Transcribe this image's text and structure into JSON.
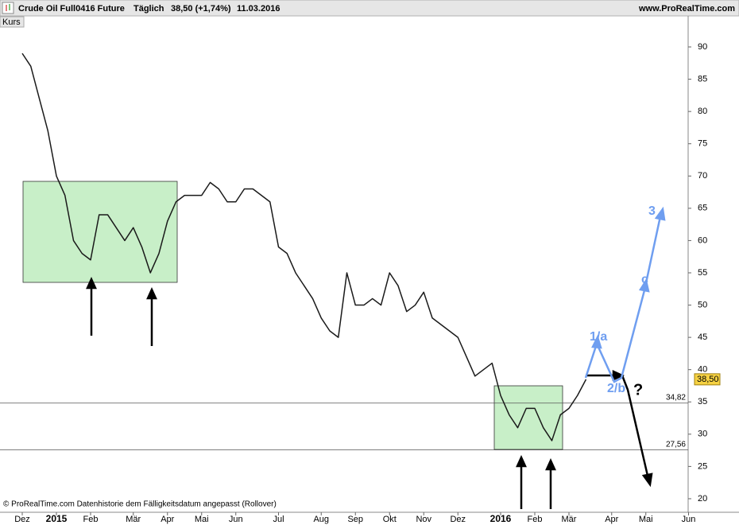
{
  "chart_data": {
    "type": "line",
    "header": {
      "instrument": "Crude Oil Full0416 Future",
      "interval": "Täglich",
      "price": "38,50 (+1,74%)",
      "date": "11.03.2016",
      "site": "www.ProRealTime.com"
    },
    "panel_label": "Kurs",
    "footer": "© ProRealTime.com  Datenhistorie dem Fälligkeitsdatum angepasst (Rollover)",
    "categories": [
      "Dez",
      null,
      null,
      null,
      "2015",
      null,
      null,
      null,
      "Feb",
      null,
      null,
      null,
      null,
      "Mär",
      null,
      null,
      null,
      "Apr",
      null,
      null,
      null,
      "Mai",
      null,
      null,
      null,
      "Jun",
      null,
      null,
      null,
      null,
      "Jul",
      null,
      null,
      null,
      null,
      "Aug",
      null,
      null,
      null,
      "Sep",
      null,
      null,
      null,
      "Okt",
      null,
      null,
      null,
      "Nov",
      null,
      null,
      null,
      "Dez",
      null,
      null,
      null,
      null,
      "2016",
      null,
      null,
      null,
      "Feb",
      null,
      null,
      null,
      "Mär",
      null,
      null,
      null,
      null,
      "Apr",
      null,
      null,
      null,
      "Mai",
      null,
      null,
      null,
      null,
      "Jun"
    ],
    "values": [
      89,
      87,
      82,
      77,
      70,
      67,
      60,
      58,
      57,
      64,
      64,
      62,
      60,
      62,
      59,
      55,
      58,
      63,
      66,
      67,
      67,
      67,
      69,
      68,
      66,
      66,
      68,
      68,
      67,
      66,
      59,
      58,
      55,
      53,
      51,
      48,
      46,
      45,
      55,
      50,
      50,
      51,
      50,
      55,
      53,
      49,
      50,
      52,
      48,
      47,
      46,
      45,
      42,
      39,
      40,
      41,
      36,
      33,
      31,
      34,
      34,
      31,
      29,
      33,
      34,
      36,
      38.5,
      null,
      null,
      null,
      null,
      null,
      null,
      null,
      null,
      null,
      null,
      null,
      null
    ],
    "color": "#1a1a1a",
    "ylim": [
      17.9,
      94.56
    ],
    "yticks": [
      20,
      25,
      30,
      35,
      40,
      45,
      50,
      55,
      60,
      65,
      70,
      75,
      80,
      85,
      90
    ],
    "hlines": [
      {
        "value": 34.82,
        "label": "34,82"
      },
      {
        "value": 27.56,
        "label": "27,56"
      }
    ],
    "last_price": {
      "value": 38.5,
      "label": "38,50"
    },
    "annotations": [
      "1/a",
      "2/b",
      "c",
      "3",
      "?"
    ]
  }
}
